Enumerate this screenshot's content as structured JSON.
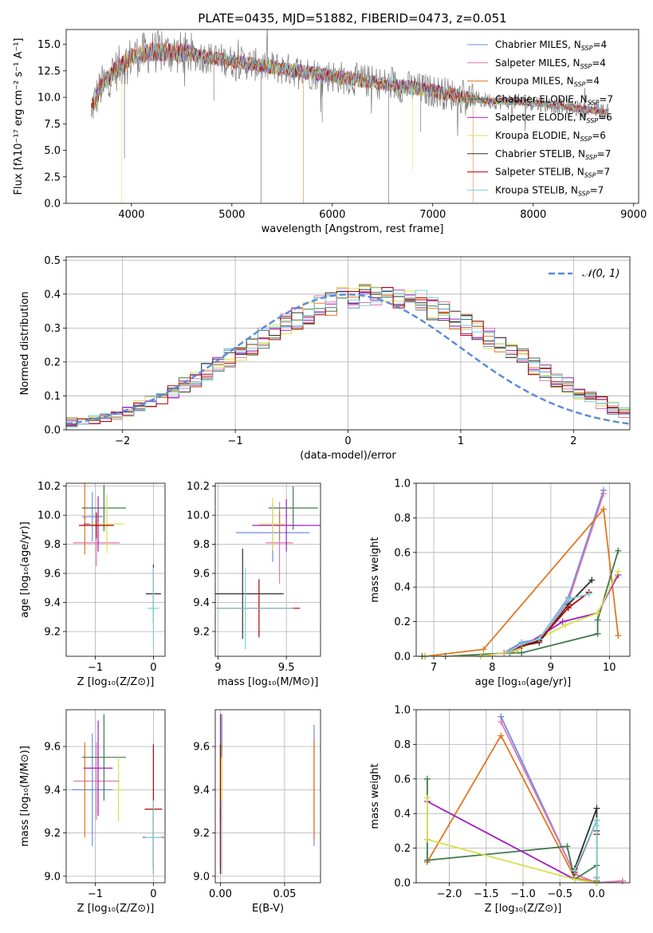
{
  "chart_data": [
    {
      "id": "spectrum",
      "type": "line",
      "title": "PLATE=0435, MJD=51882, FIBERID=0473, z=0.051",
      "xlabel": "wavelength [Angstrom, rest frame]",
      "ylabel": "Flux [fλ10⁻¹⁷ erg cm⁻² s⁻¹ A⁻¹]",
      "xlim": [
        3350,
        9050
      ],
      "ylim": [
        0,
        16.4
      ],
      "xticks": [
        4000,
        5000,
        6000,
        7000,
        8000,
        9000
      ],
      "yticks": [
        0.0,
        2.5,
        5.0,
        7.5,
        10.0,
        12.5,
        15.0
      ],
      "grid": false,
      "legend_position": "upper-right",
      "data_range": [
        3600,
        8750
      ],
      "continuum": [
        [
          3600,
          9.0
        ],
        [
          3700,
          11.0
        ],
        [
          3800,
          12.2
        ],
        [
          3900,
          13.0
        ],
        [
          4000,
          13.8
        ],
        [
          4200,
          14.3
        ],
        [
          4500,
          14.2
        ],
        [
          5000,
          13.4
        ],
        [
          5500,
          12.7
        ],
        [
          6000,
          12.0
        ],
        [
          6500,
          11.3
        ],
        [
          7000,
          10.6
        ],
        [
          7500,
          9.7
        ],
        [
          8000,
          9.5
        ],
        [
          8500,
          8.9
        ],
        [
          8750,
          8.6
        ]
      ],
      "absorption_lines": [
        {
          "x": 3900,
          "depth": 13.2,
          "series": "Kroupa ELODIE"
        },
        {
          "x": 3930,
          "depth": 9.0,
          "series": "Chabrier STELIB"
        },
        {
          "x": 4820,
          "depth": 4.0,
          "series": "Chabrier STELIB"
        },
        {
          "x": 5290,
          "depth": 13.0,
          "series": "Chabrier STELIB"
        },
        {
          "x": 5710,
          "depth": 12.5,
          "series": "Kroupa MILES"
        },
        {
          "x": 5900,
          "depth": 4.5,
          "series": "Chabrier STELIB"
        },
        {
          "x": 6560,
          "depth": 11.5,
          "series": "Chabrier STELIB"
        },
        {
          "x": 6800,
          "depth": 7.8,
          "series": "Kroupa ELODIE"
        },
        {
          "x": 6880,
          "depth": 4.0,
          "series": "Chabrier STELIB"
        },
        {
          "x": 7400,
          "depth": 9.8,
          "series": "Kroupa MILES"
        }
      ],
      "series": [
        {
          "name": "Chabrier MILES",
          "subscript": "SSP",
          "n": "4",
          "color": "#6b8de0"
        },
        {
          "name": "Salpeter MILES",
          "subscript": "SSP",
          "n": "4",
          "color": "#e078b0"
        },
        {
          "name": "Kroupa MILES",
          "subscript": "SSP",
          "n": "4",
          "color": "#e07820"
        },
        {
          "name": "Chabrier ELODIE",
          "subscript": "SSP",
          "n": "7",
          "color": "#3e7a4e"
        },
        {
          "name": "Salpeter ELODIE",
          "subscript": "SSP",
          "n": "6",
          "color": "#a020c0"
        },
        {
          "name": "Kroupa ELODIE",
          "subscript": "SSP",
          "n": "6",
          "color": "#d8e050"
        },
        {
          "name": "Chabrier STELIB",
          "subscript": "SSP",
          "n": "7",
          "color": "#303030"
        },
        {
          "name": "Salpeter STELIB",
          "subscript": "SSP",
          "n": "7",
          "color": "#b00000"
        },
        {
          "name": "Kroupa STELIB",
          "subscript": "SSP",
          "n": "7",
          "color": "#78d0d8"
        }
      ]
    },
    {
      "id": "residuals",
      "type": "histogram",
      "xlabel": "(data-model)/error",
      "ylabel": "Normed distribution",
      "xlim": [
        -2.5,
        2.5
      ],
      "ylim": [
        0,
        0.51
      ],
      "xticks": [
        -2,
        -1,
        0,
        1,
        2
      ],
      "xtick_labels": [
        "−2",
        "−1",
        "0",
        "1",
        "2"
      ],
      "yticks": [
        0.0,
        0.1,
        0.2,
        0.3,
        0.4,
        0.5
      ],
      "grid": true,
      "legend_position": "upper-right",
      "legend": [
        {
          "label": "𝒩(0, 1)",
          "color": "#5b8ad8",
          "style": "dashed"
        }
      ],
      "bin_width": 0.1,
      "bin_start": -2.5,
      "base_values": [
        0.022,
        0.028,
        0.03,
        0.035,
        0.045,
        0.055,
        0.07,
        0.085,
        0.09,
        0.11,
        0.13,
        0.15,
        0.17,
        0.19,
        0.21,
        0.23,
        0.25,
        0.27,
        0.29,
        0.31,
        0.33,
        0.345,
        0.36,
        0.37,
        0.385,
        0.395,
        0.4,
        0.402,
        0.4,
        0.395,
        0.385,
        0.375,
        0.36,
        0.345,
        0.33,
        0.31,
        0.29,
        0.27,
        0.25,
        0.23,
        0.21,
        0.19,
        0.17,
        0.15,
        0.13,
        0.11,
        0.095,
        0.08,
        0.065,
        0.05,
        0.04,
        0.032,
        0.025,
        0.022,
        0.02
      ],
      "normal_curve": {
        "mean": 0,
        "sigma": 1,
        "label": "𝒩(0, 1)"
      }
    },
    {
      "id": "age-vs-Z",
      "type": "errorbar",
      "xlabel": "Z [log₁₀(Z/Z⊙)]",
      "ylabel": "age  [log₁₀(age/yr)]",
      "xlim": [
        -1.5,
        0.2
      ],
      "ylim": [
        9.03,
        10.22
      ],
      "xticks": [
        -1,
        0
      ],
      "xtick_labels": [
        "−1",
        "0"
      ],
      "yticks": [
        9.2,
        9.4,
        9.6,
        9.8,
        10.0,
        10.2
      ],
      "grid": true,
      "points": [
        {
          "x": -1.05,
          "xerr": 0.18,
          "y": 9.99,
          "yerr": 0.17,
          "color": "#6b8de0"
        },
        {
          "x": -0.98,
          "xerr": 0.4,
          "y": 9.81,
          "yerr": 0.16,
          "color": "#e078b0"
        },
        {
          "x": -1.18,
          "xerr": 0.02,
          "y": 9.98,
          "yerr": 0.25,
          "color": "#e07820"
        },
        {
          "x": -0.85,
          "xerr": 0.38,
          "y": 10.05,
          "yerr": 0.16,
          "color": "#3e7a4e"
        },
        {
          "x": -0.95,
          "xerr": 0.25,
          "y": 9.94,
          "yerr": 0.19,
          "color": "#a020c0"
        },
        {
          "x": -0.8,
          "xerr": 0.3,
          "y": 9.94,
          "yerr": 0.2,
          "color": "#d8e050"
        },
        {
          "x": 0.0,
          "xerr": 0.13,
          "y": 9.46,
          "yerr": 0.2,
          "color": "#303030"
        },
        {
          "x": -0.98,
          "xerr": 0.3,
          "y": 9.93,
          "yerr": 0.09,
          "color": "#b00000"
        },
        {
          "x": 0.0,
          "xerr": 0.1,
          "y": 9.36,
          "yerr": 0.28,
          "color": "#78d0d8"
        }
      ]
    },
    {
      "id": "age-vs-mass",
      "type": "errorbar",
      "xlabel": "mass [log₁₀(M/M⊙)]",
      "ylabel": "",
      "xlim": [
        8.98,
        9.75
      ],
      "ylim": [
        9.03,
        10.22
      ],
      "xticks": [
        9.0,
        9.5
      ],
      "yticks": [
        9.2,
        9.4,
        9.6,
        9.8,
        10.0,
        10.2
      ],
      "grid": true,
      "points": [
        {
          "x": 9.4,
          "xerr": 0.27,
          "y": 9.88,
          "yerr": 0.2,
          "color": "#6b8de0"
        },
        {
          "x": 9.45,
          "xerr": 0.1,
          "y": 9.81,
          "yerr": 0.28,
          "color": "#e078b0"
        },
        {
          "x": 9.45,
          "xerr": 0.15,
          "y": 9.93,
          "yerr": 0.1,
          "color": "#e07820"
        },
        {
          "x": 9.55,
          "xerr": 0.18,
          "y": 10.05,
          "yerr": 0.15,
          "color": "#3e7a4e"
        },
        {
          "x": 9.5,
          "xerr": 0.25,
          "y": 9.93,
          "yerr": 0.18,
          "color": "#a020c0"
        },
        {
          "x": 9.4,
          "xerr": 0.1,
          "y": 9.94,
          "yerr": 0.18,
          "color": "#d8e050"
        },
        {
          "x": 9.18,
          "xerr": 0.3,
          "y": 9.46,
          "yerr": 0.31,
          "color": "#303030"
        },
        {
          "x": 9.3,
          "xerr": 0.3,
          "y": 9.36,
          "yerr": 0.2,
          "color": "#b00000"
        },
        {
          "x": 9.2,
          "xerr": 0.35,
          "y": 9.36,
          "yerr": 0.28,
          "color": "#78d0d8"
        }
      ]
    },
    {
      "id": "massweight-vs-age",
      "type": "line",
      "xlabel": "age  [log₁₀(age/yr)]",
      "ylabel": "mass weight",
      "xlim": [
        6.7,
        10.35
      ],
      "ylim": [
        0,
        1
      ],
      "xticks": [
        7,
        8,
        9,
        10
      ],
      "yticks": [
        0.0,
        0.2,
        0.4,
        0.6,
        0.8,
        1.0
      ],
      "grid": true,
      "series": [
        {
          "name": "Chabrier MILES",
          "color": "#6b8de0",
          "x": [
            8.2,
            8.5,
            8.8,
            9.3,
            9.9
          ],
          "y": [
            0.02,
            0.08,
            0.1,
            0.34,
            0.96
          ]
        },
        {
          "name": "Salpeter MILES",
          "color": "#e078b0",
          "x": [
            8.2,
            8.5,
            8.8,
            9.3,
            9.9
          ],
          "y": [
            0.02,
            0.07,
            0.09,
            0.32,
            0.94
          ]
        },
        {
          "name": "Kroupa MILES",
          "color": "#e07820",
          "x": [
            6.85,
            7.85,
            9.9,
            10.15
          ],
          "y": [
            0.0,
            0.04,
            0.85,
            0.12
          ]
        },
        {
          "name": "Chabrier ELODIE",
          "color": "#3e7a4e",
          "x": [
            6.8,
            7.2,
            8.3,
            8.5,
            9.8,
            9.8,
            10.15
          ],
          "y": [
            0.0,
            0.0,
            0.02,
            0.02,
            0.13,
            0.21,
            0.61
          ]
        },
        {
          "name": "Salpeter ELODIE",
          "color": "#a020c0",
          "x": [
            6.85,
            7.8,
            8.4,
            9.2,
            9.8,
            10.15
          ],
          "y": [
            0.0,
            0.0,
            0.03,
            0.2,
            0.25,
            0.47
          ]
        },
        {
          "name": "Kroupa ELODIE",
          "color": "#d8e050",
          "x": [
            6.85,
            7.8,
            8.4,
            9.25,
            9.8,
            10.15
          ],
          "y": [
            0.0,
            0.0,
            0.03,
            0.18,
            0.25,
            0.49
          ]
        },
        {
          "name": "Chabrier STELIB",
          "color": "#303030",
          "x": [
            8.3,
            8.5,
            8.8,
            9.3,
            9.7
          ],
          "y": [
            0.03,
            0.06,
            0.08,
            0.3,
            0.44
          ]
        },
        {
          "name": "Salpeter STELIB",
          "color": "#b00000",
          "x": [
            8.3,
            8.5,
            8.8,
            9.3,
            9.65
          ],
          "y": [
            0.03,
            0.06,
            0.09,
            0.28,
            0.37
          ]
        },
        {
          "name": "Kroupa STELIB",
          "color": "#78d0d8",
          "x": [
            8.3,
            8.5,
            8.8,
            9.3,
            9.65
          ],
          "y": [
            0.03,
            0.07,
            0.1,
            0.33,
            0.36
          ]
        }
      ]
    },
    {
      "id": "mass-vs-Z",
      "type": "errorbar",
      "xlabel": "Z [log₁₀(Z/Z⊙)]",
      "ylabel": "mass [log₁₀(M/M⊙)]",
      "xlim": [
        -1.5,
        0.2
      ],
      "ylim": [
        8.97,
        9.77
      ],
      "xticks": [
        -1,
        0
      ],
      "xtick_labels": [
        "−1",
        "0"
      ],
      "yticks": [
        9.0,
        9.2,
        9.4,
        9.6
      ],
      "grid": true,
      "points": [
        {
          "x": -1.05,
          "xerr": 0.35,
          "y": 9.4,
          "yerr": 0.26,
          "color": "#6b8de0"
        },
        {
          "x": -0.98,
          "xerr": 0.4,
          "y": 9.44,
          "yerr": 0.18,
          "color": "#e078b0"
        },
        {
          "x": -1.18,
          "xerr": 0.02,
          "y": 9.4,
          "yerr": 0.22,
          "color": "#e07820"
        },
        {
          "x": -0.85,
          "xerr": 0.38,
          "y": 9.55,
          "yerr": 0.2,
          "color": "#3e7a4e"
        },
        {
          "x": -0.95,
          "xerr": 0.25,
          "y": 9.5,
          "yerr": 0.22,
          "color": "#a020c0"
        },
        {
          "x": -0.6,
          "xerr": 0.05,
          "y": 9.4,
          "yerr": 0.15,
          "color": "#d8e050"
        },
        {
          "x": 0.0,
          "xerr": 0.18,
          "y": 9.18,
          "yerr": 0.14,
          "color": "#303030"
        },
        {
          "x": 0.0,
          "xerr": 0.15,
          "y": 9.31,
          "yerr": 0.3,
          "color": "#b00000"
        },
        {
          "x": 0.0,
          "xerr": 0.15,
          "y": 9.18,
          "yerr": 0.17,
          "color": "#78d0d8"
        }
      ]
    },
    {
      "id": "mass-vs-ebv",
      "type": "errorbar",
      "xlabel": "E(B-V)",
      "ylabel": "",
      "xlim": [
        -0.004,
        0.078
      ],
      "ylim": [
        8.97,
        9.77
      ],
      "xticks": [
        0.0,
        0.05
      ],
      "xtick_labels": [
        "0.00",
        "0.05"
      ],
      "yticks": [
        9.0,
        9.2,
        9.4,
        9.6
      ],
      "grid": true,
      "points": [
        {
          "x": 0.073,
          "y": 9.42,
          "yerr": 0.28,
          "color": "#6b8de0"
        },
        {
          "x": 0.073,
          "y": 9.44,
          "yerr": 0.2,
          "color": "#e078b0"
        },
        {
          "x": 0.073,
          "y": 9.4,
          "yerr": 0.23,
          "color": "#e07820"
        },
        {
          "x": 0.001,
          "y": 9.55,
          "yerr": 0.2,
          "color": "#3e7a4e"
        },
        {
          "x": 0.0,
          "y": 9.5,
          "yerr": 0.25,
          "color": "#a020c0"
        },
        {
          "x": 0.001,
          "y": 9.4,
          "yerr": 0.15,
          "color": "#d8e050"
        },
        {
          "x": 0.0,
          "y": 9.18,
          "yerr": 0.14,
          "color": "#303030"
        },
        {
          "x": 0.0,
          "y": 9.31,
          "yerr": 0.3,
          "color": "#b00000"
        },
        {
          "x": 0.001,
          "y": 9.18,
          "yerr": 0.17,
          "color": "#78d0d8"
        }
      ]
    },
    {
      "id": "massweight-vs-Z",
      "type": "line",
      "xlabel": "Z [log₁₀(Z/Z⊙)]",
      "ylabel": "mass weight",
      "xlim": [
        -2.45,
        0.45
      ],
      "ylim": [
        0,
        1
      ],
      "xticks": [
        -2.0,
        -1.5,
        -1.0,
        -0.5,
        0.0
      ],
      "xtick_labels": [
        "−2.0",
        "−1.5",
        "−1.0",
        "−0.5",
        "0.0"
      ],
      "yticks": [
        0.0,
        0.2,
        0.4,
        0.6,
        0.8,
        1.0
      ],
      "grid": true,
      "series": [
        {
          "name": "Chabrier MILES",
          "color": "#6b8de0",
          "x": [
            -1.3,
            -0.3,
            0.0,
            0.35
          ],
          "y": [
            0.96,
            0.05,
            0.0,
            0.01
          ]
        },
        {
          "name": "Salpeter MILES",
          "color": "#e078b0",
          "x": [
            -1.3,
            -0.3,
            0.0,
            0.35
          ],
          "y": [
            0.93,
            0.05,
            0.0,
            0.01
          ]
        },
        {
          "name": "Kroupa MILES",
          "color": "#e07820",
          "x": [
            -2.3,
            -1.3,
            -0.3,
            0.0
          ],
          "y": [
            0.12,
            0.85,
            0.03,
            0.0
          ]
        },
        {
          "name": "Chabrier ELODIE",
          "color": "#3e7a4e",
          "x": [
            -2.3,
            -2.3,
            -2.3,
            -0.4,
            -0.3,
            0.0,
            0.0
          ],
          "y": [
            0.6,
            0.25,
            0.13,
            0.21,
            0.02,
            0.1,
            0.01
          ]
        },
        {
          "name": "Salpeter ELODIE",
          "color": "#a020c0",
          "x": [
            -2.3,
            -0.3,
            0.0
          ],
          "y": [
            0.47,
            0.02,
            0.0
          ]
        },
        {
          "name": "Kroupa ELODIE",
          "color": "#d8e050",
          "x": [
            -2.3,
            -2.3,
            -0.3,
            0.0
          ],
          "y": [
            0.49,
            0.25,
            0.02,
            0.0
          ]
        },
        {
          "name": "Chabrier STELIB",
          "color": "#303030",
          "x": [
            -0.3,
            0.0,
            0.0,
            0.0
          ],
          "y": [
            0.08,
            0.43,
            0.3,
            0.03
          ]
        },
        {
          "name": "Salpeter STELIB",
          "color": "#b00000",
          "x": [
            -0.3,
            0.0,
            0.0,
            0.0
          ],
          "y": [
            0.06,
            0.36,
            0.28,
            0.03
          ]
        },
        {
          "name": "Kroupa STELIB",
          "color": "#78d0d8",
          "x": [
            -0.3,
            0.0,
            0.0,
            0.0
          ],
          "y": [
            0.07,
            0.36,
            0.33,
            0.03
          ]
        }
      ]
    }
  ]
}
